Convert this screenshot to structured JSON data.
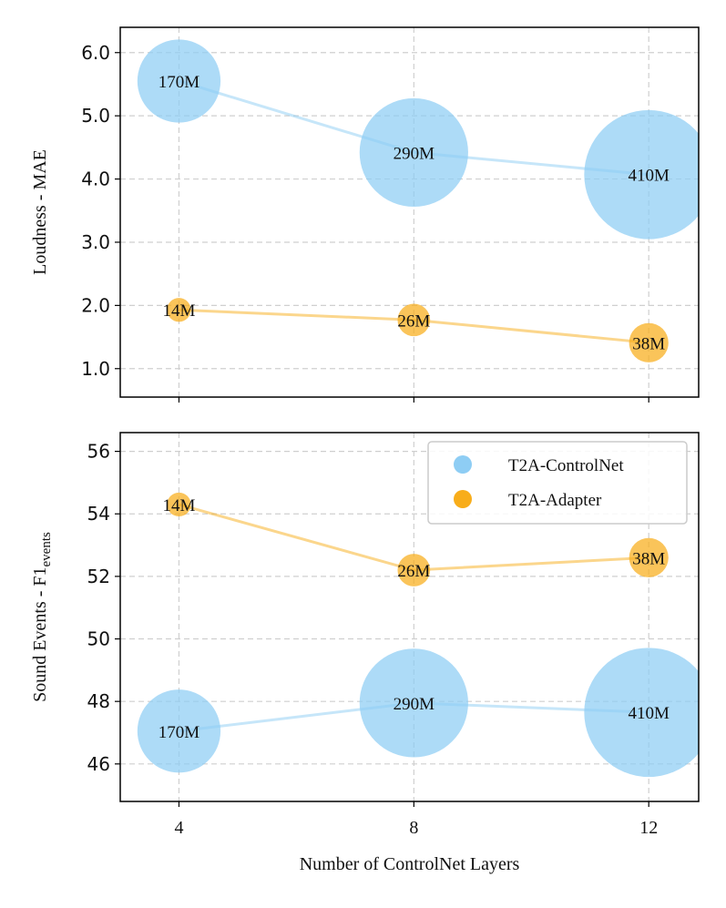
{
  "chart_data": {
    "type": "scatter",
    "xlabel": "Number of ControlNet Layers",
    "x_ticks": [
      "4",
      "8",
      "12"
    ],
    "x": [
      4,
      8,
      12
    ],
    "colors": {
      "controlnet": "#8ecdf4",
      "adapter": "#f8ad1a"
    },
    "legend": {
      "position": "top-right",
      "entries": [
        {
          "label": "T2A-ControlNet",
          "color": "#8ecdf4"
        },
        {
          "label": "T2A-Adapter",
          "color": "#f8ad1a"
        }
      ]
    },
    "panels": [
      {
        "ylabel": "Loudness - MAE",
        "ylim": [
          0.55,
          6.4
        ],
        "y_ticks": [
          "1.0",
          "2.0",
          "3.0",
          "4.0",
          "5.0",
          "6.0"
        ],
        "y_tick_values": [
          1,
          2,
          3,
          4,
          5,
          6
        ],
        "series": [
          {
            "name": "T2A-ControlNet",
            "values": [
              5.55,
              4.42,
              4.07
            ],
            "sizes": [
              "170M",
              "290M",
              "410M"
            ],
            "params_m": [
              170,
              290,
              410
            ]
          },
          {
            "name": "T2A-Adapter",
            "values": [
              1.93,
              1.77,
              1.41
            ],
            "sizes": [
              "14M",
              "26M",
              "38M"
            ],
            "params_m": [
              14,
              26,
              38
            ]
          }
        ]
      },
      {
        "ylabel": "Sound Events - F1",
        "ylabel_sub": "events",
        "ylim": [
          44.8,
          56.6
        ],
        "y_ticks": [
          "46",
          "48",
          "50",
          "52",
          "54",
          "56"
        ],
        "y_tick_values": [
          46,
          48,
          50,
          52,
          54,
          56
        ],
        "series": [
          {
            "name": "T2A-ControlNet",
            "values": [
              47.05,
              47.95,
              47.65
            ],
            "sizes": [
              "170M",
              "290M",
              "410M"
            ],
            "params_m": [
              170,
              290,
              410
            ]
          },
          {
            "name": "T2A-Adapter",
            "values": [
              54.3,
              52.2,
              52.6
            ],
            "sizes": [
              "14M",
              "26M",
              "38M"
            ],
            "params_m": [
              14,
              26,
              38
            ]
          }
        ]
      }
    ]
  }
}
